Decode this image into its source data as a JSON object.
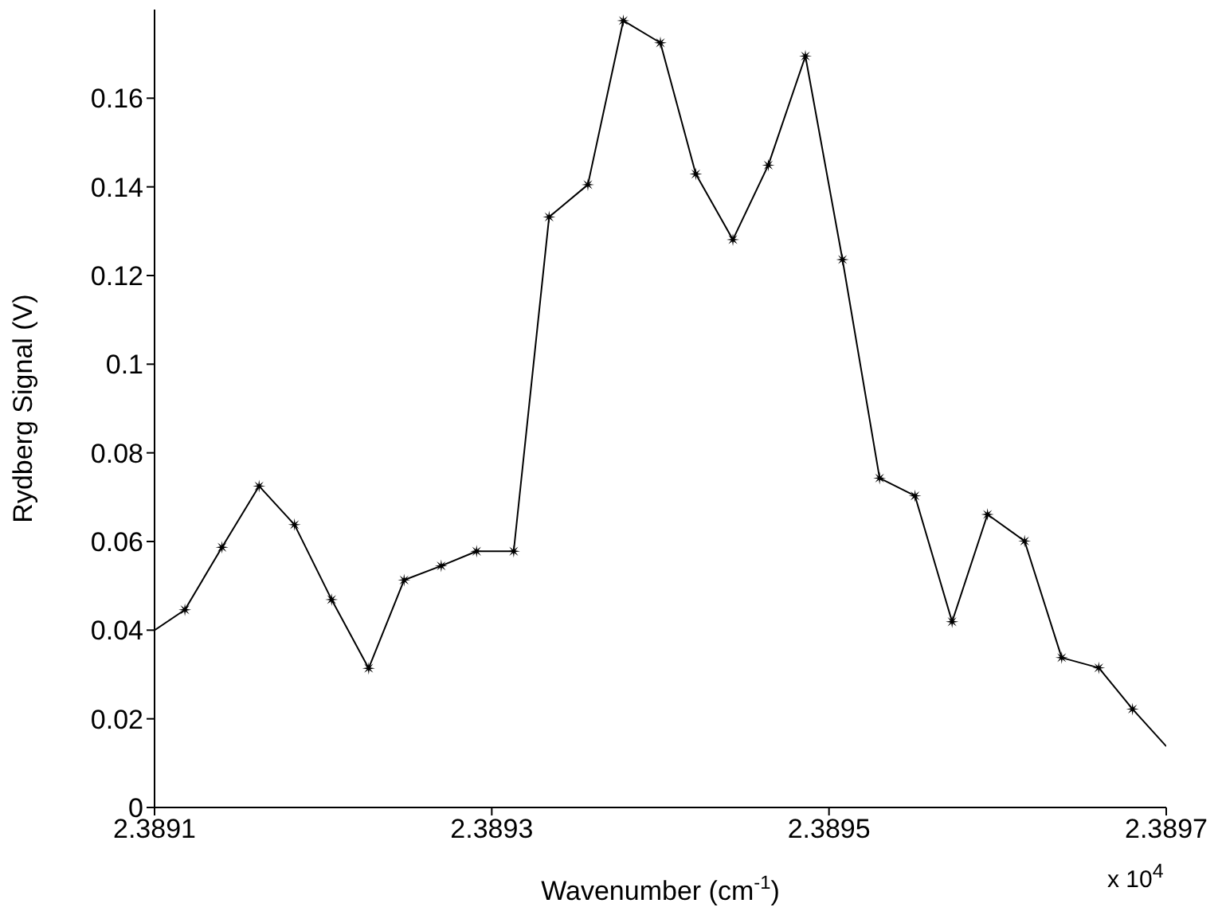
{
  "chart_data": {
    "type": "line",
    "xlabel": "Wavenumber (cm$^{-1}$)",
    "ylabel": "Rydberg Signal (V)",
    "annotations": [
      "x 10$^{4}$"
    ],
    "xlim": [
      2.3891,
      2.3897
    ],
    "xticks": [
      2.3891,
      2.3893,
      2.3895,
      2.3897
    ],
    "ylim": [
      0,
      0.18
    ],
    "yticks": [
      0,
      0.02,
      0.04,
      0.06,
      0.08,
      {
        "value": 0.1,
        "label": "0.1"
      },
      0.12,
      0.14,
      0.16
    ],
    "line_style": "solid",
    "series": [
      {
        "color": "#000000",
        "marker": "none",
        "x": [
          2.3891,
          2.389118
        ],
        "values": [
          0.04,
          0.0446
        ]
      },
      {
        "color": "#000000",
        "marker": "star",
        "x": [
          2.389118,
          2.38914,
          2.389162,
          2.389183,
          2.389205,
          2.389227,
          2.389248,
          2.38927,
          2.389291,
          2.389313,
          2.389334,
          2.389357,
          2.389378,
          2.3894,
          2.389421,
          2.389443,
          2.389464,
          2.389486,
          2.389508,
          2.38953,
          2.389551,
          2.389573,
          2.389594,
          2.389616,
          2.389638,
          2.38966,
          2.38968
        ],
        "values": [
          0.0446,
          0.0587,
          0.0725,
          0.0638,
          0.0469,
          0.0314,
          0.0513,
          0.0545,
          0.0578,
          0.0578,
          0.1332,
          0.1405,
          0.1775,
          0.1725,
          0.1429,
          0.1281,
          0.1449,
          0.1695,
          0.1236,
          0.0743,
          0.0703,
          0.0419,
          0.0661,
          0.0601,
          0.0338,
          0.0315,
          0.0222
        ]
      },
      {
        "color": "#000000",
        "marker": "none",
        "x": [
          2.38968,
          2.3897
        ],
        "values": [
          0.0222,
          0.0138
        ]
      }
    ]
  }
}
